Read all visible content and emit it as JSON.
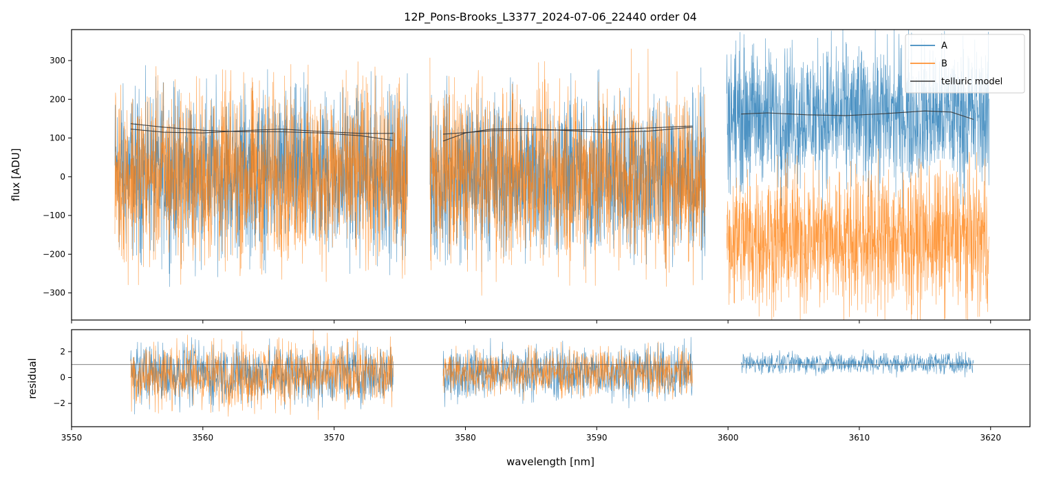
{
  "chart_data": [
    {
      "panel": "top",
      "type": "line",
      "title": "12P_Pons-Brooks_L3377_2024-07-06_22440  order 04",
      "xlabel": "",
      "ylabel": "flux [ADU]",
      "xlim": [
        3550,
        3623
      ],
      "ylim": [
        -370,
        380
      ],
      "yticks": [
        -300,
        -200,
        -100,
        0,
        100,
        200,
        300
      ],
      "ytick_labels": [
        "−300",
        "−200",
        "−100",
        "0",
        "100",
        "200",
        "300"
      ],
      "xticks": [
        3550,
        3560,
        3570,
        3580,
        3590,
        3600,
        3610,
        3620
      ],
      "grid": false,
      "legend": {
        "position": "top-right",
        "entries": [
          {
            "label": "A",
            "color": "#1f77b4"
          },
          {
            "label": "B",
            "color": "#ff7f0e"
          },
          {
            "label": "telluric model",
            "color": "#333333"
          }
        ]
      },
      "segments": [
        {
          "x_range": [
            3553.3,
            3575.6
          ],
          "series": [
            {
              "name": "A",
              "center": 10,
              "spread": 230
            },
            {
              "name": "B",
              "center": 5,
              "spread": 250
            }
          ]
        },
        {
          "x_range": [
            3577.3,
            3598.3
          ],
          "series": [
            {
              "name": "A",
              "center": 5,
              "spread": 230
            },
            {
              "name": "B",
              "center": 5,
              "spread": 250
            }
          ]
        },
        {
          "x_range": [
            3599.9,
            3619.9
          ],
          "series": [
            {
              "name": "A",
              "center": 160,
              "spread": 200
            },
            {
              "name": "B",
              "center": -160,
              "spread": 200
            }
          ]
        }
      ],
      "telluric_model": [
        {
          "x": [
            3554.5,
            3557,
            3560,
            3563,
            3566,
            3569,
            3572,
            3574.5
          ],
          "y": [
            137,
            128,
            120,
            116,
            116,
            113,
            106,
            94
          ]
        },
        {
          "x": [
            3554.5,
            3557,
            3560,
            3563,
            3566,
            3569,
            3572,
            3574.5
          ],
          "y": [
            123,
            115,
            113,
            119,
            123,
            117,
            112,
            112
          ]
        },
        {
          "x": [
            3578.3,
            3580,
            3582,
            3585,
            3588,
            3591,
            3594,
            3597.3
          ],
          "y": [
            92,
            113,
            123,
            124,
            119,
            114,
            118,
            128
          ]
        },
        {
          "x": [
            3578.3,
            3580,
            3582,
            3585,
            3588,
            3591,
            3594,
            3597.3
          ],
          "y": [
            110,
            114,
            119,
            120,
            121,
            122,
            126,
            131
          ]
        },
        {
          "x": [
            3601,
            3603,
            3606,
            3609,
            3612,
            3615,
            3617,
            3618.7
          ],
          "y": [
            162,
            165,
            160,
            158,
            163,
            170,
            167,
            148
          ]
        }
      ]
    },
    {
      "panel": "bottom",
      "type": "line",
      "title": "",
      "xlabel": "wavelength [nm]",
      "ylabel": "residual",
      "xlim": [
        3550,
        3623
      ],
      "ylim": [
        -3.8,
        3.7
      ],
      "yticks": [
        -2,
        0,
        2
      ],
      "ytick_labels": [
        "−2",
        "0",
        "2"
      ],
      "xticks": [
        3550,
        3560,
        3570,
        3580,
        3590,
        3600,
        3610,
        3620
      ],
      "xtick_labels": [
        "3550",
        "3560",
        "3570",
        "3580",
        "3590",
        "3600",
        "3610",
        "3620"
      ],
      "reference_line_y": 1,
      "segments": [
        {
          "x_range": [
            3554.5,
            3574.5
          ],
          "series": [
            {
              "name": "A",
              "center": 0.3,
              "spread": 2.6
            },
            {
              "name": "B",
              "center": 0.2,
              "spread": 2.8
            }
          ]
        },
        {
          "x_range": [
            3578.3,
            3597.3
          ],
          "series": [
            {
              "name": "A",
              "center": 0.4,
              "spread": 2.2
            },
            {
              "name": "B",
              "center": 0.4,
              "spread": 2.0
            }
          ]
        },
        {
          "x_range": [
            3601,
            3618.7
          ],
          "series": [
            {
              "name": "A",
              "center": 1.1,
              "spread": 0.9
            }
          ]
        }
      ]
    }
  ]
}
